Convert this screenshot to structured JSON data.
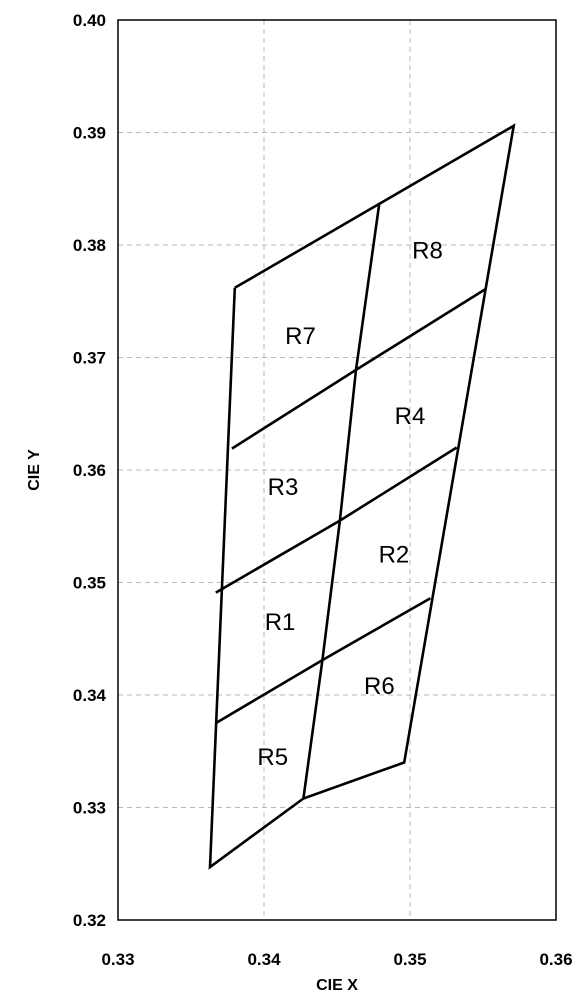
{
  "chart_data": {
    "type": "line",
    "title": "",
    "xlabel": "CIE X",
    "ylabel": "CIE Y",
    "xlim": [
      0.33,
      0.36
    ],
    "ylim": [
      0.32,
      0.4
    ],
    "x_ticks": [
      "0.33",
      "0.34",
      "0.35",
      "0.36"
    ],
    "y_ticks": [
      "0.32",
      "0.33",
      "0.34",
      "0.35",
      "0.36",
      "0.37",
      "0.38",
      "0.39",
      "0.40"
    ],
    "grid": true,
    "legend": "none",
    "line_color": "#000000",
    "regions": [
      {
        "name": "R1",
        "label_pos": [
          0.3411,
          0.3465
        ],
        "corners": [
          [
            0.3367,
            0.3491
          ],
          [
            0.3452,
            0.3555
          ],
          [
            0.344,
            0.3431
          ],
          [
            0.3367,
            0.3375
          ]
        ]
      },
      {
        "name": "R2",
        "label_pos": [
          0.3489,
          0.3525
        ],
        "corners": [
          [
            0.3452,
            0.3555
          ],
          [
            0.3532,
            0.362
          ],
          [
            0.3514,
            0.3486
          ],
          [
            0.344,
            0.3431
          ]
        ]
      },
      {
        "name": "R3",
        "label_pos": [
          0.3413,
          0.3585
        ],
        "corners": [
          [
            0.3378,
            0.3619
          ],
          [
            0.3463,
            0.3689
          ],
          [
            0.3452,
            0.3555
          ],
          [
            0.3367,
            0.3491
          ]
        ]
      },
      {
        "name": "R4",
        "label_pos": [
          0.35,
          0.3648
        ],
        "corners": [
          [
            0.3463,
            0.3689
          ],
          [
            0.3552,
            0.3761
          ],
          [
            0.3532,
            0.362
          ],
          [
            0.3452,
            0.3555
          ]
        ]
      },
      {
        "name": "R5",
        "label_pos": [
          0.3406,
          0.3345
        ],
        "corners": [
          [
            0.3367,
            0.3375
          ],
          [
            0.344,
            0.3431
          ],
          [
            0.3427,
            0.3308
          ],
          [
            0.3363,
            0.3247
          ]
        ]
      },
      {
        "name": "R6",
        "label_pos": [
          0.3479,
          0.3408
        ],
        "corners": [
          [
            0.344,
            0.3431
          ],
          [
            0.3514,
            0.3486
          ],
          [
            0.3496,
            0.334
          ],
          [
            0.3427,
            0.3308
          ]
        ]
      },
      {
        "name": "R7",
        "label_pos": [
          0.3425,
          0.3719
        ],
        "corners": [
          [
            0.338,
            0.3762
          ],
          [
            0.3479,
            0.3837
          ],
          [
            0.3463,
            0.3689
          ],
          [
            0.3378,
            0.3619
          ]
        ]
      },
      {
        "name": "R8",
        "label_pos": [
          0.3512,
          0.3795
        ],
        "corners": [
          [
            0.3479,
            0.3837
          ],
          [
            0.3571,
            0.3906
          ],
          [
            0.3552,
            0.3761
          ],
          [
            0.3463,
            0.3689
          ]
        ]
      }
    ],
    "outline": [
      [
        0.338,
        0.3762
      ],
      [
        0.3571,
        0.3906
      ],
      [
        0.3496,
        0.334
      ],
      [
        0.3427,
        0.3308
      ],
      [
        0.3363,
        0.3247
      ],
      [
        0.338,
        0.3762
      ]
    ],
    "vertical_divider": [
      [
        0.3479,
        0.3837
      ],
      [
        0.3463,
        0.3689
      ],
      [
        0.3452,
        0.3555
      ],
      [
        0.344,
        0.3431
      ],
      [
        0.3427,
        0.3308
      ]
    ],
    "horizontal_dividers": [
      [
        [
          0.3378,
          0.3619
        ],
        [
          0.3463,
          0.3689
        ],
        [
          0.3552,
          0.3761
        ]
      ],
      [
        [
          0.3367,
          0.3491
        ],
        [
          0.3452,
          0.3555
        ],
        [
          0.3532,
          0.362
        ]
      ],
      [
        [
          0.3367,
          0.3375
        ],
        [
          0.344,
          0.3431
        ],
        [
          0.3514,
          0.3486
        ]
      ]
    ]
  }
}
